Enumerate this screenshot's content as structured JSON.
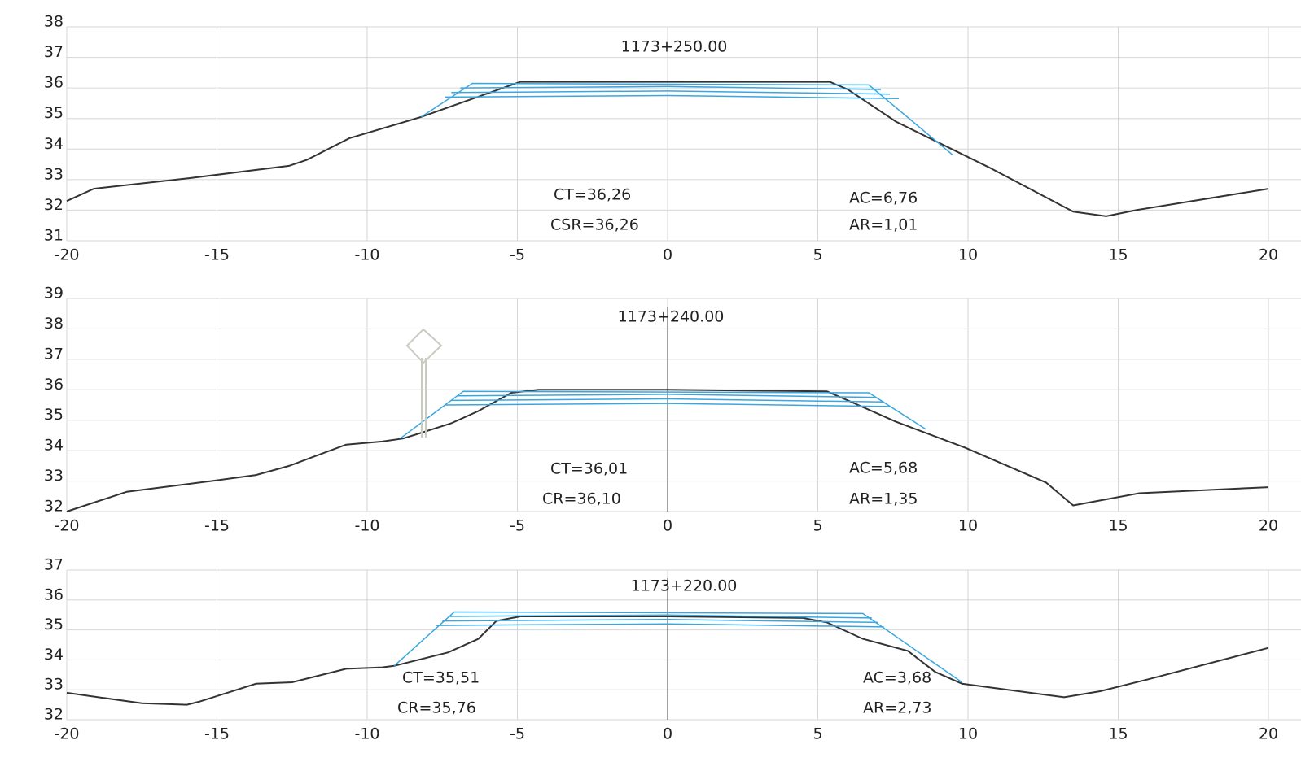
{
  "chart_data": [
    {
      "type": "line",
      "title": "1173+250.00",
      "annotations": [
        "CT=36,26",
        "CSR=36,26",
        "AC=6,76",
        "AR=1,01"
      ],
      "xlim": [
        -20,
        20
      ],
      "xticks": [
        -20,
        -15,
        -10,
        -5,
        0,
        5,
        10,
        15,
        20
      ],
      "ylim": [
        31,
        38
      ],
      "yticks": [
        31,
        32,
        33,
        34,
        35,
        36,
        37,
        38
      ],
      "grid": true,
      "series": [
        {
          "color": "#333333",
          "x": [
            -20,
            -19.1,
            -15.9,
            -12.6,
            -12,
            -10.6,
            -8.2,
            -4.9,
            0,
            5.4,
            6,
            7.6,
            10.7,
            13.5,
            14.6,
            15.6,
            20
          ],
          "values": [
            32.3,
            32.7,
            33.05,
            33.45,
            33.65,
            34.35,
            35.05,
            36.2,
            36.2,
            36.2,
            35.95,
            34.9,
            33.4,
            31.95,
            31.8,
            32.0,
            32.7
          ]
        },
        {
          "color": "#3aa6e0",
          "x": [
            -8.2,
            -6.5,
            6.7,
            9.5
          ],
          "values": [
            35.05,
            36.15,
            36.1,
            33.8
          ]
        },
        {
          "color": "#3aa6e0",
          "x": [
            -6.9,
            0,
            7.1
          ],
          "values": [
            36.0,
            36.05,
            35.95
          ]
        },
        {
          "color": "#3aa6e0",
          "x": [
            -7.2,
            0,
            7.4
          ],
          "values": [
            35.85,
            35.9,
            35.8
          ]
        },
        {
          "color": "#3aa6e0",
          "x": [
            -7.4,
            0,
            7.7
          ],
          "values": [
            35.7,
            35.75,
            35.65
          ]
        }
      ]
    },
    {
      "type": "line",
      "title": "1173+240.00",
      "annotations": [
        "CT=36,01",
        "CR=36,10",
        "AC=5,68",
        "AR=1,35"
      ],
      "xlim": [
        -20,
        20
      ],
      "xticks": [
        -20,
        -15,
        -10,
        -5,
        0,
        5,
        10,
        15,
        20
      ],
      "ylim": [
        32,
        39
      ],
      "yticks": [
        32,
        33,
        34,
        35,
        36,
        37,
        38,
        39
      ],
      "grid": true,
      "series": [
        {
          "color": "#333333",
          "x": [
            -20,
            -18,
            -15.2,
            -13.7,
            -12.6,
            -10.7,
            -9.5,
            -8.8,
            -7.2,
            -6.3,
            -5.2,
            -4.3,
            0,
            5.3,
            6,
            7.6,
            9.9,
            12.6,
            13.5,
            15.7,
            20
          ],
          "values": [
            32.0,
            32.65,
            33.0,
            33.2,
            33.5,
            34.2,
            34.3,
            34.4,
            34.9,
            35.3,
            35.9,
            36.0,
            36.0,
            35.95,
            35.65,
            34.95,
            34.1,
            32.95,
            32.2,
            32.6,
            32.8
          ]
        },
        {
          "color": "#3aa6e0",
          "x": [
            -8.9,
            -6.8,
            6.7,
            8.6
          ],
          "values": [
            34.4,
            35.95,
            35.9,
            34.7
          ]
        },
        {
          "color": "#3aa6e0",
          "x": [
            -7.0,
            0,
            6.9
          ],
          "values": [
            35.8,
            35.85,
            35.75
          ]
        },
        {
          "color": "#3aa6e0",
          "x": [
            -7.2,
            0,
            7.2
          ],
          "values": [
            35.65,
            35.7,
            35.6
          ]
        },
        {
          "color": "#3aa6e0",
          "x": [
            -7.4,
            0,
            7.4
          ],
          "values": [
            35.5,
            35.55,
            35.45
          ]
        }
      ]
    },
    {
      "type": "line",
      "title": "1173+220.00",
      "annotations": [
        "CT=35,51",
        "CR=35,76",
        "AC=3,68",
        "AR=2,73"
      ],
      "xlim": [
        -20,
        20
      ],
      "xticks": [
        -20,
        -15,
        -10,
        -5,
        0,
        5,
        10,
        15,
        20
      ],
      "ylim": [
        32,
        37
      ],
      "yticks": [
        32,
        33,
        34,
        35,
        36,
        37
      ],
      "grid": true,
      "series": [
        {
          "color": "#333333",
          "x": [
            -20,
            -17.5,
            -16,
            -15.6,
            -13.7,
            -12.5,
            -10.7,
            -9.5,
            -9.1,
            -7.3,
            -6.3,
            -5.7,
            -4.9,
            0,
            4.5,
            5.3,
            6.5,
            8,
            8.9,
            9.8,
            13.2,
            14.4,
            16,
            20
          ],
          "values": [
            32.9,
            32.55,
            32.5,
            32.6,
            33.2,
            33.25,
            33.7,
            33.75,
            33.8,
            34.25,
            34.7,
            35.3,
            35.45,
            35.45,
            35.4,
            35.25,
            34.7,
            34.3,
            33.6,
            33.2,
            32.75,
            32.95,
            33.35,
            34.4
          ]
        },
        {
          "color": "#3aa6e0",
          "x": [
            -9.1,
            -7.1,
            6.5,
            9.8
          ],
          "values": [
            33.8,
            35.6,
            35.55,
            33.25
          ]
        },
        {
          "color": "#3aa6e0",
          "x": [
            -7.3,
            0,
            6.8
          ],
          "values": [
            35.45,
            35.5,
            35.4
          ]
        },
        {
          "color": "#3aa6e0",
          "x": [
            -7.5,
            0,
            7.0
          ],
          "values": [
            35.3,
            35.35,
            35.25
          ]
        },
        {
          "color": "#3aa6e0",
          "x": [
            -7.7,
            0,
            7.2
          ],
          "values": [
            35.15,
            35.2,
            35.1
          ]
        }
      ]
    }
  ]
}
